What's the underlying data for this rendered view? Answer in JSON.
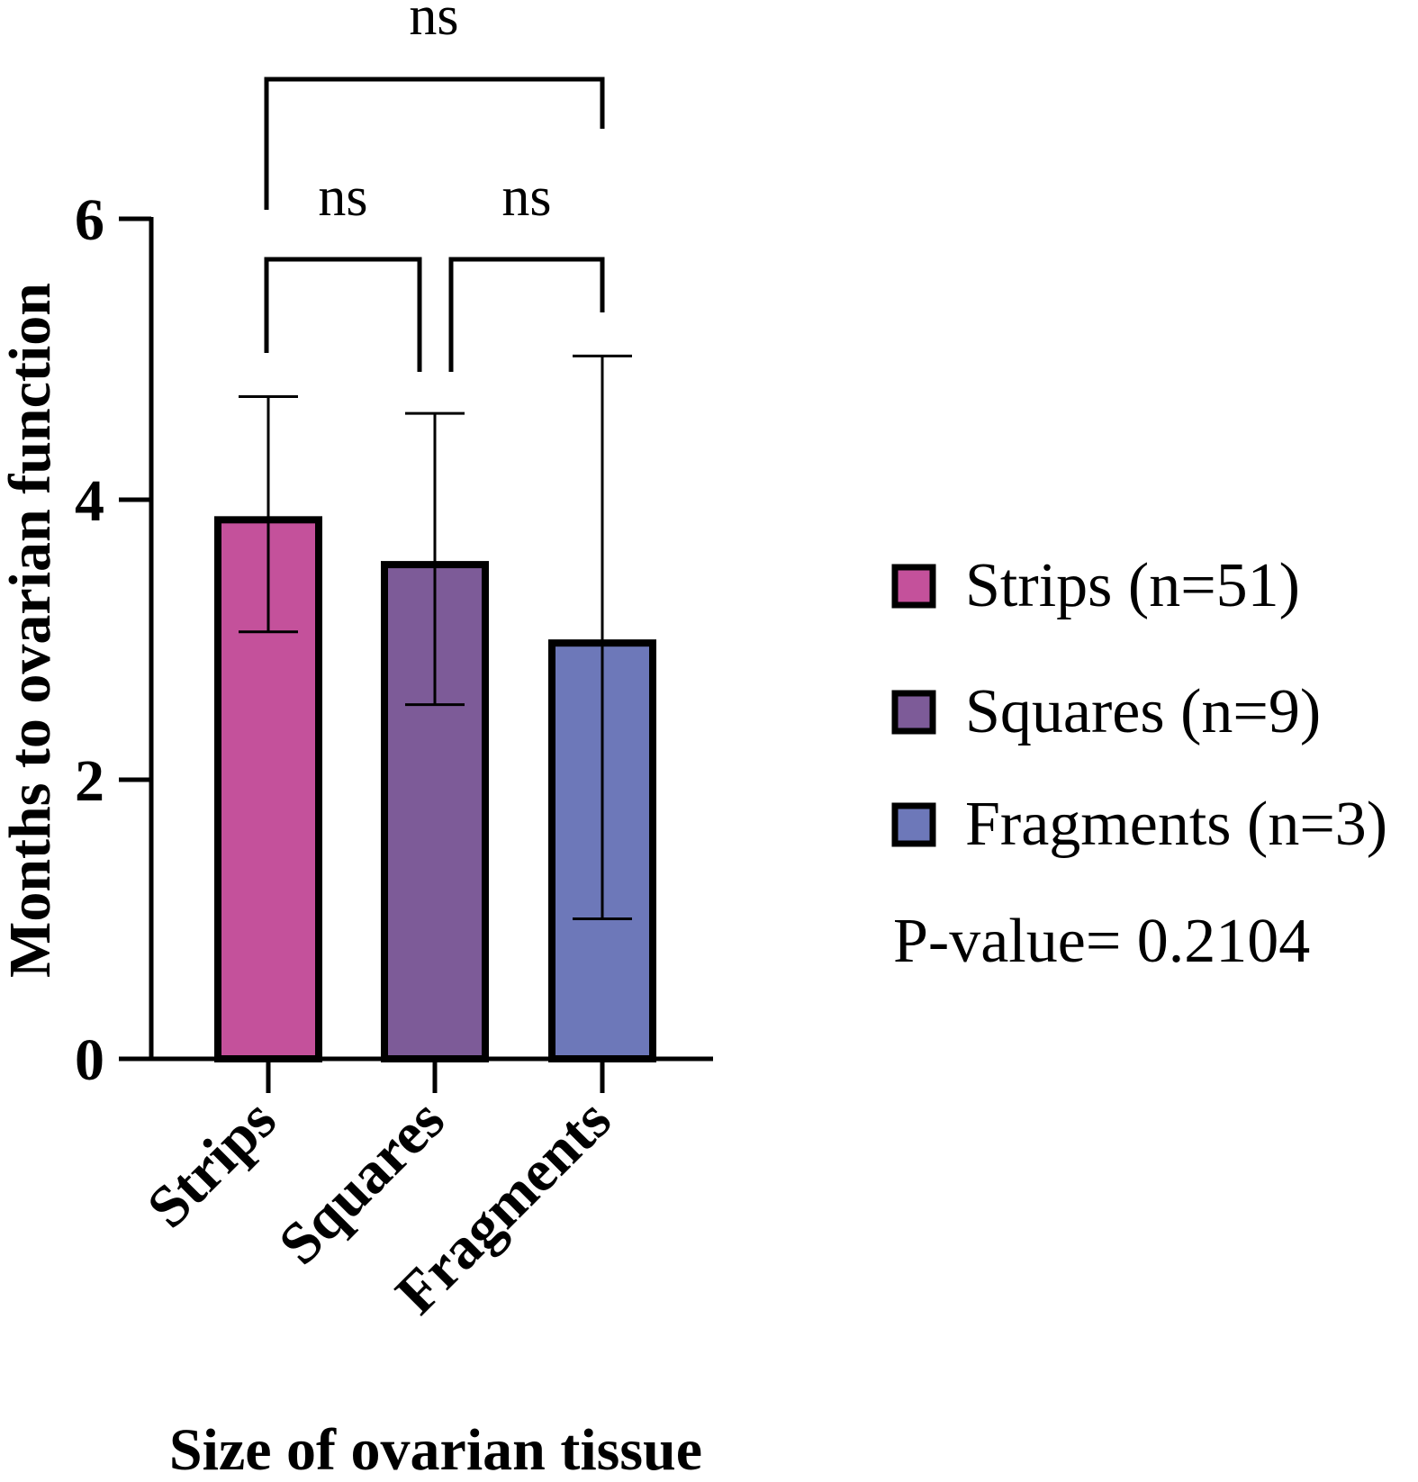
{
  "chart_data": {
    "type": "bar",
    "categories": [
      "Strips",
      "Squares",
      "Fragments"
    ],
    "values": [
      3.85,
      3.53,
      2.97
    ],
    "error_upper": [
      4.73,
      4.61,
      5.02
    ],
    "error_lower": [
      3.05,
      2.53,
      1.0
    ],
    "colors": [
      "#c4519b",
      "#7d5b98",
      "#6d78b9"
    ],
    "xlabel": "Size of ovarian tissue",
    "ylabel": "Months to ovarian function",
    "ylim": [
      0,
      6
    ],
    "yticks": [
      "0",
      "2",
      "4",
      "6"
    ],
    "grid": false,
    "legend": {
      "placement": "right",
      "entries": [
        "Strips (n=51)",
        "Squares (n=9)",
        "Fragments (n=3)"
      ]
    },
    "annotation": "P-value= 0.2104",
    "significance": [
      {
        "from": "Strips",
        "to": "Squares",
        "label": "ns"
      },
      {
        "from": "Squares",
        "to": "Fragments",
        "label": "ns"
      },
      {
        "from": "Strips",
        "to": "Fragments",
        "label": "ns"
      }
    ]
  }
}
